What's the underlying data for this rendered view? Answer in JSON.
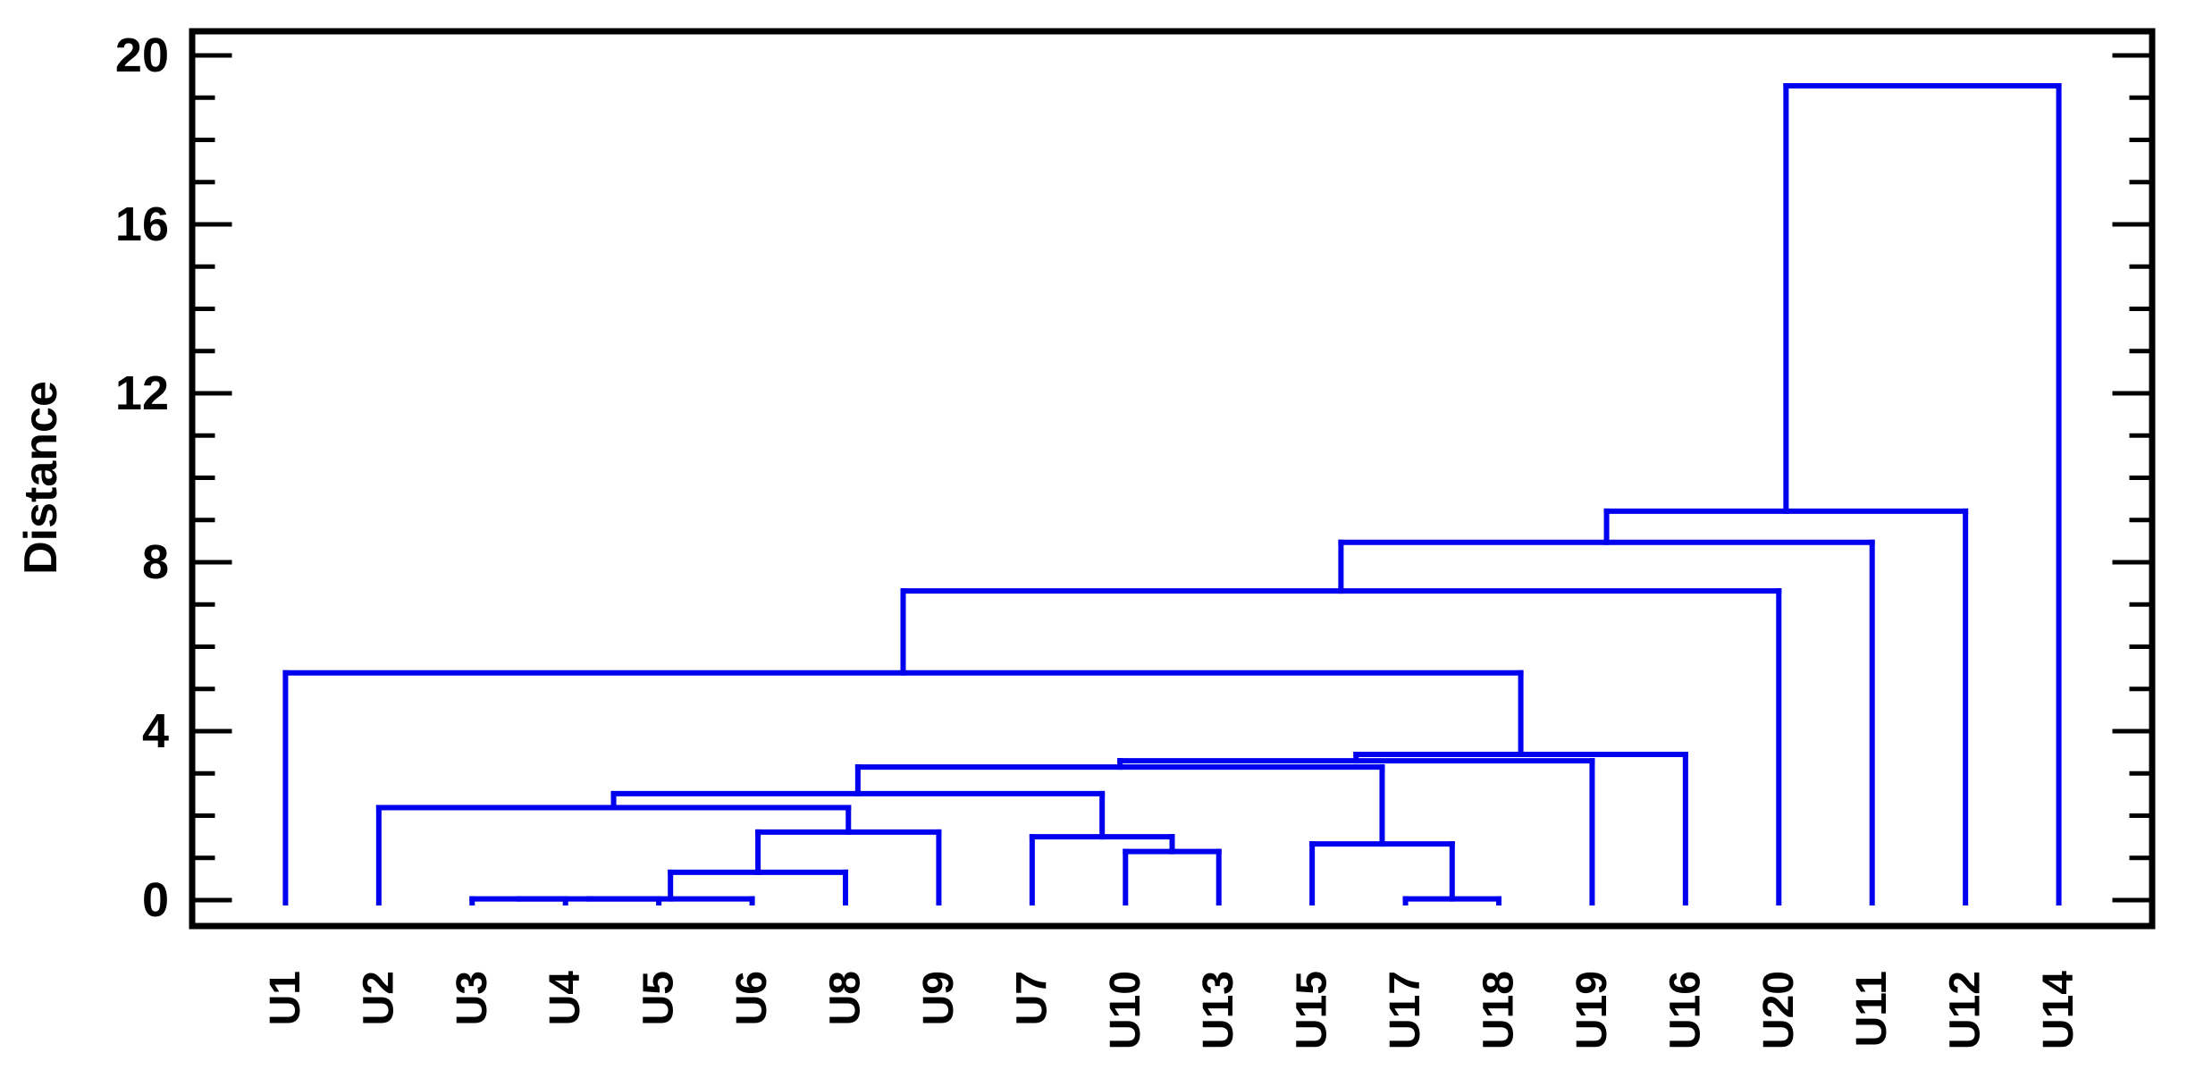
{
  "figure": {
    "kind": "hierarchical-clustering-dendrogram",
    "background_color": "#FFFFFF"
  },
  "chart_data": {
    "type": "dendrogram",
    "title": "",
    "xlabel": "",
    "ylabel": "Distance",
    "y_axis": {
      "min": 0,
      "max": 20,
      "major_ticks": [
        0,
        4,
        8,
        12,
        16,
        20
      ],
      "major_tick_labels": [
        "0",
        "4",
        "8",
        "12",
        "16",
        "20"
      ],
      "minor_tick_step": 1,
      "ticks_on_left": true,
      "ticks_on_right": true,
      "grid": false
    },
    "leaves": [
      "U1",
      "U2",
      "U3",
      "U4",
      "U5",
      "U6",
      "U8",
      "U9",
      "U7",
      "U10",
      "U13",
      "U15",
      "U17",
      "U18",
      "U19",
      "U16",
      "U20",
      "U11",
      "U12",
      "U14"
    ],
    "merges": [
      {
        "id": "M1",
        "a": "U3",
        "b": "U4",
        "height": 0.03
      },
      {
        "id": "M2",
        "a": "M1",
        "b": "U5",
        "height": 0.03
      },
      {
        "id": "M3",
        "a": "M2",
        "b": "U6",
        "height": 0.03
      },
      {
        "id": "M4",
        "a": "M3",
        "b": "U8",
        "height": 0.66
      },
      {
        "id": "M5",
        "a": "M4",
        "b": "U9",
        "height": 1.61
      },
      {
        "id": "M6",
        "a": "U2",
        "b": "M5",
        "height": 2.19
      },
      {
        "id": "M7",
        "a": "U10",
        "b": "U13",
        "height": 1.15
      },
      {
        "id": "M8",
        "a": "U7",
        "b": "M7",
        "height": 1.5
      },
      {
        "id": "M9",
        "a": "M6",
        "b": "M8",
        "height": 2.52
      },
      {
        "id": "M10",
        "a": "U17",
        "b": "U18",
        "height": 0.03
      },
      {
        "id": "M11",
        "a": "U15",
        "b": "M10",
        "height": 1.33
      },
      {
        "id": "M12",
        "a": "M9",
        "b": "M11",
        "height": 3.15
      },
      {
        "id": "M13",
        "a": "M12",
        "b": "U19",
        "height": 3.3
      },
      {
        "id": "M14",
        "a": "M13",
        "b": "U16",
        "height": 3.45
      },
      {
        "id": "M15",
        "a": "U1",
        "b": "M14",
        "height": 5.38
      },
      {
        "id": "M16",
        "a": "M15",
        "b": "U20",
        "height": 7.32
      },
      {
        "id": "M17",
        "a": "M16",
        "b": "U11",
        "height": 8.47
      },
      {
        "id": "M18",
        "a": "M17",
        "b": "U12",
        "height": 9.21
      },
      {
        "id": "M19",
        "a": "M18",
        "b": "U14",
        "height": 19.28
      }
    ],
    "legend": null,
    "colors": {
      "link": "#0000EE",
      "axis": "#000000",
      "text": "#000000",
      "background": "#FFFFFF"
    }
  }
}
